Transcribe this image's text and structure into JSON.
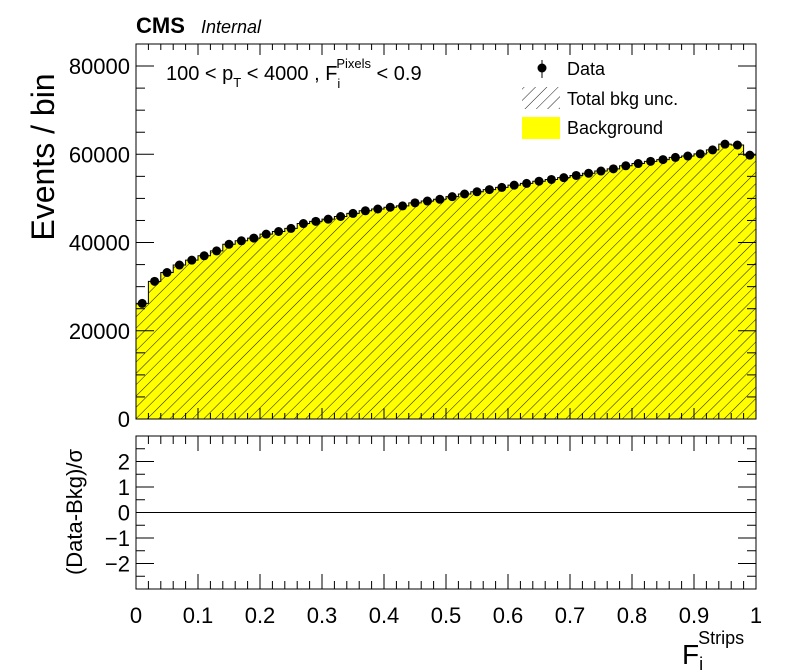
{
  "header": {
    "experiment": "CMS",
    "status": "Internal"
  },
  "cut_label": {
    "prefix": "100 < p",
    "pt_sub": "T",
    "middle": " < 4000 , F",
    "f_sub": "i",
    "f_sup": "Pixels",
    "suffix": " < 0.9"
  },
  "legend": {
    "data": "Data",
    "unc": "Total bkg unc.",
    "bkg": "Background"
  },
  "colors": {
    "background_fill": "#ffff00",
    "data_marker": "#000000"
  },
  "chart_data": [
    {
      "panel": "main",
      "type": "histogram",
      "ylabel": "Events / bin",
      "xlim": [
        0,
        1
      ],
      "ylim": [
        0,
        85000
      ],
      "yticks": [
        "0",
        "20000",
        "40000",
        "60000",
        "80000"
      ],
      "bin_width": 0.02,
      "x": [
        0.01,
        0.03,
        0.05,
        0.07,
        0.09,
        0.11,
        0.13,
        0.15,
        0.17,
        0.19,
        0.21,
        0.23,
        0.25,
        0.27,
        0.29,
        0.31,
        0.33,
        0.35,
        0.37,
        0.39,
        0.41,
        0.43,
        0.45,
        0.47,
        0.49,
        0.51,
        0.53,
        0.55,
        0.57,
        0.59,
        0.61,
        0.63,
        0.65,
        0.67,
        0.69,
        0.71,
        0.73,
        0.75,
        0.77,
        0.79,
        0.81,
        0.83,
        0.85,
        0.87,
        0.89,
        0.91,
        0.93,
        0.95,
        0.97,
        0.99
      ],
      "series": [
        {
          "name": "Background",
          "values": [
            26200,
            31200,
            33200,
            34900,
            36000,
            37000,
            38100,
            39600,
            40400,
            41000,
            41900,
            42500,
            43200,
            44300,
            44800,
            45300,
            45900,
            46600,
            47200,
            47600,
            48000,
            48300,
            49000,
            49400,
            49800,
            50400,
            51000,
            51500,
            52000,
            52500,
            53000,
            53400,
            53900,
            54300,
            54700,
            55200,
            55700,
            56200,
            56700,
            57400,
            57900,
            58400,
            58800,
            59300,
            59600,
            60100,
            61000,
            62300,
            62100,
            59800
          ]
        },
        {
          "name": "Data",
          "values": [
            26200,
            31200,
            33200,
            34900,
            36000,
            37000,
            38100,
            39600,
            40400,
            41000,
            41900,
            42500,
            43200,
            44300,
            44800,
            45300,
            45900,
            46600,
            47200,
            47600,
            48000,
            48300,
            49000,
            49400,
            49800,
            50400,
            51000,
            51500,
            52000,
            52500,
            53000,
            53400,
            53900,
            54300,
            54700,
            55200,
            55700,
            56200,
            56700,
            57400,
            57900,
            58400,
            58800,
            59300,
            59600,
            60100,
            61000,
            62300,
            62100,
            59800
          ]
        }
      ]
    },
    {
      "panel": "ratio",
      "type": "line",
      "ylabel": "(Data-Bkg)/σ",
      "xlabel_main": "F",
      "xlabel_sub": "i",
      "xlabel_sup": "Strips",
      "xlim": [
        0,
        1
      ],
      "ylim": [
        -3,
        3
      ],
      "reference_line": 0,
      "yticks": [
        "−2",
        "−1",
        "0",
        "1",
        "2"
      ],
      "xticks": [
        "0",
        "0.1",
        "0.2",
        "0.3",
        "0.4",
        "0.5",
        "0.6",
        "0.7",
        "0.8",
        "0.9",
        "1"
      ]
    }
  ]
}
